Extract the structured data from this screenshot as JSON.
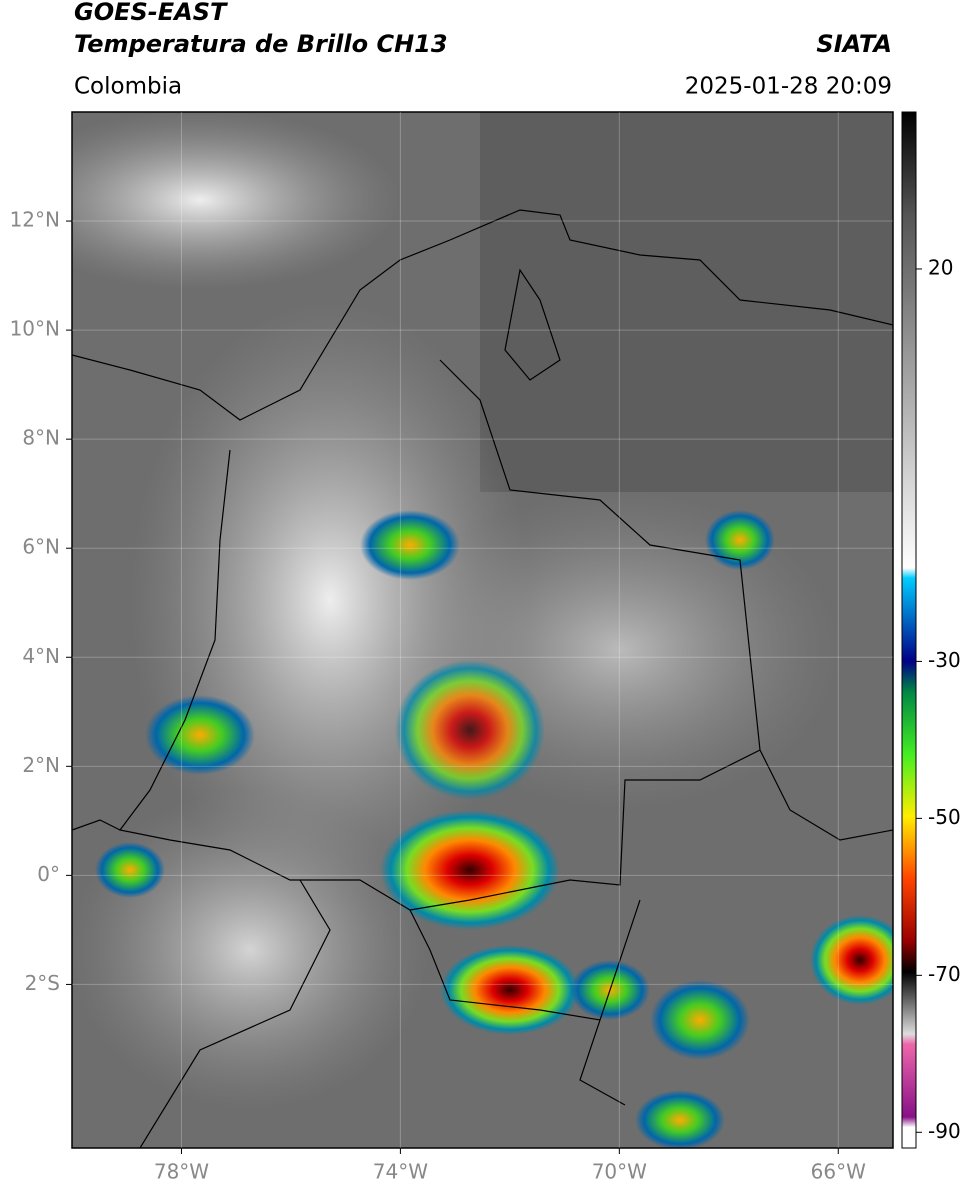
{
  "header": {
    "satellite": "GOES-EAST",
    "product": "Temperatura de Brillo CH13",
    "region": "Colombia",
    "source": "SIATA",
    "datetime": "2025-01-28 20:09"
  },
  "map": {
    "lonlim": [
      -80,
      -65
    ],
    "latlim": [
      -5,
      14
    ],
    "lon_ticks": [
      {
        "value": -78,
        "label": "78°W"
      },
      {
        "value": -74,
        "label": "74°W"
      },
      {
        "value": -70,
        "label": "70°W"
      },
      {
        "value": -66,
        "label": "66°W"
      }
    ],
    "lat_ticks": [
      {
        "value": 12,
        "label": "12°N"
      },
      {
        "value": 10,
        "label": "10°N"
      },
      {
        "value": 8,
        "label": "8°N"
      },
      {
        "value": 6,
        "label": "6°N"
      },
      {
        "value": 4,
        "label": "4°N"
      },
      {
        "value": 2,
        "label": "2°N"
      },
      {
        "value": 0,
        "label": "0°"
      },
      {
        "value": -2,
        "label": "2°S"
      }
    ],
    "grid": true
  },
  "colorbar": {
    "lim": [
      -92,
      40
    ],
    "ticks": [
      20,
      -30,
      -50,
      -70,
      -90
    ]
  }
}
